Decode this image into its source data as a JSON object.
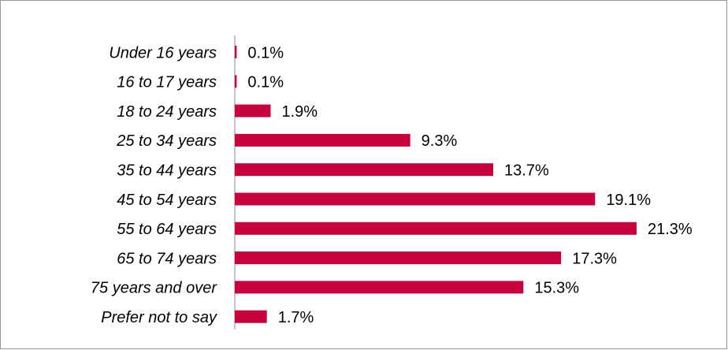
{
  "chart_data": {
    "type": "bar",
    "orientation": "horizontal",
    "categories": [
      "Under 16 years",
      "16 to 17 years",
      "18 to 24 years",
      "25 to 34 years",
      "35 to 44 years",
      "45 to 54 years",
      "55 to 64 years",
      "65 to 74 years",
      "75 years and over",
      "Prefer not to say"
    ],
    "values": [
      0.1,
      0.1,
      1.9,
      9.3,
      13.7,
      19.1,
      21.3,
      17.3,
      15.3,
      1.7
    ],
    "value_labels": [
      "0.1%",
      "0.1%",
      "1.9%",
      "9.3%",
      "13.7%",
      "19.1%",
      "21.3%",
      "17.3%",
      "15.3%",
      "1.7%"
    ],
    "color": "#c8003c"
  }
}
